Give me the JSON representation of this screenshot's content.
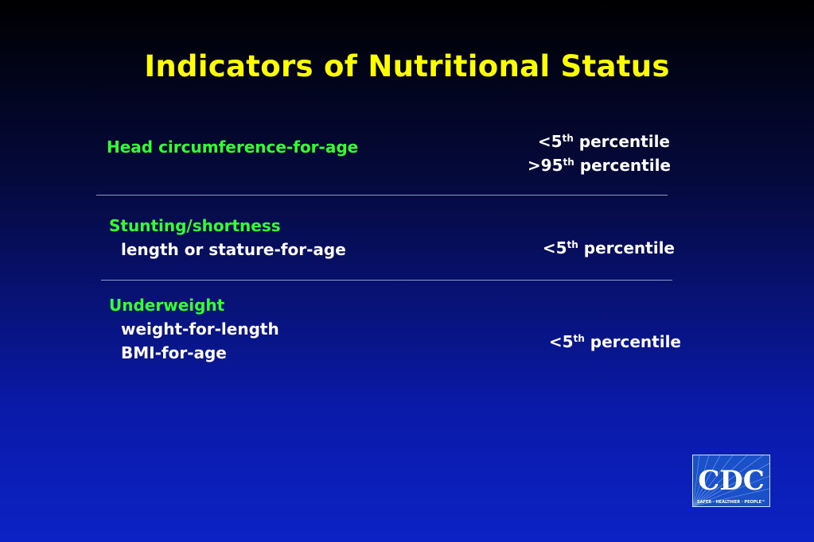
{
  "title": "Indicators of Nutritional Status",
  "sections": [
    {
      "heading": "Head circumference-for-age",
      "subitems": [],
      "values": [
        {
          "prefix": "<5",
          "sup": "th",
          "suffix": " percentile"
        },
        {
          "prefix": ">95",
          "sup": "th",
          "suffix": " percentile"
        }
      ]
    },
    {
      "heading": "Stunting/shortness",
      "subitems": [
        "length or stature-for-age"
      ],
      "values": [
        {
          "prefix": "<5",
          "sup": "th",
          "suffix": " percentile"
        }
      ]
    },
    {
      "heading": "Underweight",
      "subitems": [
        "weight-for-length",
        "BMI-for-age"
      ],
      "values": [
        {
          "prefix": "<5",
          "sup": "th",
          "suffix": " percentile"
        }
      ]
    }
  ],
  "logo": {
    "text": "CDC",
    "tagline": "SAFER · HEALTHIER · PEOPLE™",
    "background": "#1a50c8"
  },
  "colors": {
    "title": "#ffff00",
    "heading": "#33ff33",
    "body": "#ffffff",
    "rule": "#8a9cc8"
  }
}
